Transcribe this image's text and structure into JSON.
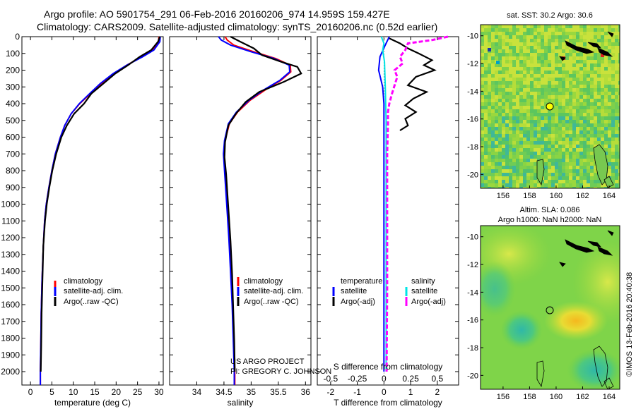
{
  "header": {
    "line1": "Argo profile: AO 5901754_291 06-Feb-2016 20160206_974 14.959S 159.427E",
    "line2": "Climatology: CARS2009. Satellite-adjusted climatology: synTS_20160206.nc (0.52d earlier)"
  },
  "credits": {
    "project": "US ARGO PROJECT",
    "pi": "PI: GREGORY C. JOHNSON",
    "imos": "©IMOS 13-Feb-2016 20:40:38"
  },
  "colors": {
    "climatology": "#ff0000",
    "satellite": "#0000ff",
    "argo": "#000000",
    "sal_satellite": "#00e5e5",
    "sal_argo": "#ff00ff"
  },
  "chart_data": [
    {
      "type": "line",
      "id": "temperature",
      "xlabel": "temperature (deg C)",
      "ylabel": "",
      "xlim": [
        -2,
        31
      ],
      "ylim": [
        2080,
        0
      ],
      "xticks": [
        "0",
        "5",
        "10",
        "15",
        "20",
        "25",
        "30"
      ],
      "xtick_values": [
        0,
        5,
        10,
        15,
        20,
        25,
        30
      ],
      "yticks": [
        "0",
        "100",
        "200",
        "300",
        "400",
        "500",
        "600",
        "700",
        "800",
        "900",
        "1000",
        "1100",
        "1200",
        "1300",
        "1400",
        "1500",
        "1600",
        "1700",
        "1800",
        "1900",
        "2000"
      ],
      "ytick_values": [
        0,
        100,
        200,
        300,
        400,
        500,
        600,
        700,
        800,
        900,
        1000,
        1100,
        1200,
        1300,
        1400,
        1500,
        1600,
        1700,
        1800,
        1900,
        2000
      ],
      "legend": [
        "climatology",
        "satellite-adj. clim.",
        "Argo(..raw -QC)"
      ],
      "series": [
        {
          "name": "climatology",
          "color": "#ff0000",
          "x": [
            30.0,
            29.9,
            28.5,
            26.0,
            22.5,
            19.5,
            16.5,
            14.0,
            11.5,
            9.5,
            8.0,
            7.0,
            5.8,
            5.0,
            4.3,
            3.7,
            3.3,
            3.0,
            2.7,
            2.5,
            2.4,
            2.3,
            2.3
          ],
          "y": [
            0,
            30,
            80,
            120,
            170,
            220,
            280,
            340,
            400,
            460,
            530,
            600,
            700,
            800,
            900,
            1000,
            1100,
            1250,
            1450,
            1650,
            1850,
            2000,
            2080
          ]
        },
        {
          "name": "satellite-adj. clim.",
          "color": "#0000ff",
          "x": [
            30.3,
            30.2,
            28.8,
            26.2,
            22.5,
            19.3,
            16.3,
            13.8,
            11.4,
            9.5,
            8.0,
            7.0,
            5.8,
            5.0,
            4.3,
            3.7,
            3.3,
            3.0,
            2.7,
            2.5,
            2.4,
            2.3,
            2.3
          ],
          "y": [
            0,
            30,
            80,
            120,
            170,
            220,
            280,
            340,
            400,
            460,
            530,
            600,
            700,
            800,
            900,
            1000,
            1100,
            1250,
            1450,
            1650,
            1850,
            2000,
            2080
          ]
        },
        {
          "name": "Argo(..raw -QC)",
          "color": "#000000",
          "x": [
            30.2,
            29.8,
            28.2,
            25.5,
            22.8,
            19.8,
            17.0,
            14.2,
            12.5,
            10.2,
            8.5,
            7.2,
            6.0,
            5.1,
            4.4,
            3.8,
            3.4,
            3.0,
            2.8,
            2.6,
            2.5,
            2.4
          ],
          "y": [
            0,
            30,
            80,
            120,
            170,
            220,
            280,
            340,
            400,
            460,
            530,
            600,
            700,
            800,
            900,
            1000,
            1100,
            1250,
            1450,
            1650,
            1850,
            2000
          ]
        }
      ]
    },
    {
      "type": "line",
      "id": "salinity",
      "xlabel": "salinity",
      "ylabel": "",
      "xlim": [
        33.5,
        36.1
      ],
      "ylim": [
        2080,
        0
      ],
      "xticks": [
        "34",
        "34.5",
        "35",
        "35.5",
        "36"
      ],
      "xtick_values": [
        34,
        34.5,
        35,
        35.5,
        36
      ],
      "legend": [
        "climatology",
        "satellite-adj. clim.",
        "Argo(..raw -QC)"
      ],
      "series": [
        {
          "name": "climatology",
          "color": "#ff0000",
          "x": [
            34.52,
            34.56,
            34.68,
            35.05,
            35.45,
            35.72,
            35.73,
            35.55,
            35.25,
            34.98,
            34.75,
            34.6,
            34.52,
            34.5,
            34.52,
            34.56,
            34.6,
            34.63,
            34.66,
            34.68,
            34.7,
            34.7
          ],
          "y": [
            0,
            20,
            50,
            90,
            130,
            170,
            210,
            260,
            320,
            380,
            450,
            520,
            620,
            700,
            800,
            1000,
            1200,
            1400,
            1600,
            1800,
            2000,
            2080
          ]
        },
        {
          "name": "satellite-adj. clim.",
          "color": "#0000ff",
          "x": [
            34.4,
            34.45,
            34.62,
            35.0,
            35.42,
            35.7,
            35.71,
            35.53,
            35.22,
            34.96,
            34.73,
            34.58,
            34.51,
            34.49,
            34.51,
            34.55,
            34.59,
            34.62,
            34.65,
            34.67,
            34.69,
            34.69
          ],
          "y": [
            0,
            20,
            50,
            90,
            130,
            170,
            210,
            260,
            320,
            380,
            450,
            520,
            620,
            700,
            800,
            1000,
            1200,
            1400,
            1600,
            1800,
            2000,
            2080
          ]
        },
        {
          "name": "Argo(..raw -QC)",
          "color": "#000000",
          "x": [
            34.62,
            34.8,
            35.05,
            35.2,
            35.55,
            35.85,
            35.92,
            35.6,
            35.15,
            34.9,
            34.72,
            34.58,
            34.52,
            34.51,
            34.54,
            34.58,
            34.62,
            34.65,
            34.67,
            34.69,
            34.7
          ],
          "y": [
            0,
            30,
            70,
            110,
            150,
            180,
            220,
            270,
            330,
            390,
            460,
            530,
            630,
            720,
            820,
            1020,
            1220,
            1420,
            1620,
            1820,
            2000
          ]
        }
      ]
    },
    {
      "type": "line",
      "id": "difference",
      "xlabel": "T difference from climatology",
      "xlabel_top": "S difference from climatology",
      "xlim": [
        -2.5,
        2.8
      ],
      "ylim": [
        2080,
        0
      ],
      "xticks": [
        "-2",
        "-1",
        "0",
        "1",
        "2"
      ],
      "xtick_values": [
        -2,
        -1,
        0,
        1,
        2
      ],
      "xticks_top": [
        "-0.5",
        "-0.25",
        "0",
        "0.25",
        "0.5"
      ],
      "xtick_values_top": [
        -0.5,
        -0.25,
        0,
        0.25,
        0.5
      ],
      "legend_titles": [
        "temperature",
        "salinity"
      ],
      "legend": [
        "satellite",
        "Argo(-adj)",
        "satellite",
        "Argo(-adj)"
      ],
      "series": [
        {
          "name": "satellite",
          "color": "#0000ff",
          "x": [
            0.2,
            0.05,
            -0.15,
            -0.2,
            -0.05,
            0.0,
            0.0,
            0.0,
            0.0,
            0.0
          ],
          "y": [
            0,
            50,
            120,
            200,
            300,
            400,
            600,
            1000,
            1500,
            2000
          ]
        },
        {
          "name": "Argo(-adj)",
          "color": "#000000",
          "x": [
            0.2,
            0.6,
            0.9,
            1.3,
            1.8,
            1.5,
            1.9,
            1.2,
            0.9,
            1.6,
            1.1,
            0.8,
            1.2,
            0.8,
            0.9,
            0.6
          ],
          "y": [
            10,
            40,
            70,
            100,
            140,
            170,
            200,
            240,
            290,
            330,
            370,
            410,
            450,
            490,
            530,
            560
          ]
        },
        {
          "name": "satellite",
          "color": "#00e5e5",
          "x": [
            -0.1,
            0.0,
            -0.05,
            0.02,
            0.05,
            0.08,
            0.08,
            0.08,
            0.08,
            0.08,
            0.08
          ],
          "y": [
            0,
            40,
            80,
            150,
            300,
            500,
            700,
            1000,
            1400,
            1800,
            2000
          ]
        },
        {
          "name": "Argo(-adj)",
          "color": "#ff00ff",
          "x": [
            2.4,
            1.8,
            0.9,
            0.8,
            0.6,
            0.7,
            0.4,
            0.5,
            0.4,
            0.3,
            0.2,
            0.15,
            0.15,
            0.12,
            0.12,
            0.12,
            0.1
          ],
          "y": [
            0,
            20,
            40,
            80,
            120,
            160,
            200,
            240,
            290,
            340,
            400,
            450,
            520,
            700,
            1000,
            1500,
            2000
          ]
        }
      ]
    },
    {
      "type": "heatmap",
      "id": "sst_map",
      "title": "sat. SST: 30.2  Argo: 30.6",
      "xlim": [
        154.3,
        164.8
      ],
      "ylim": [
        -21,
        -9.2
      ],
      "xticks": [
        "156",
        "158",
        "160",
        "162",
        "164"
      ],
      "xtick_values": [
        156,
        158,
        160,
        162,
        164
      ],
      "yticks": [
        "-10",
        "-12",
        "-14",
        "-16",
        "-18",
        "-20"
      ],
      "ytick_values": [
        -10,
        -12,
        -14,
        -16,
        -18,
        -20
      ],
      "argo_position": [
        159.427,
        -14.959
      ]
    },
    {
      "type": "heatmap",
      "id": "sla_map",
      "title": "Altim. SLA: 0.086",
      "subtitle": "Argo h1000: NaN  h2000: NaN",
      "xlim": [
        154.3,
        164.8
      ],
      "ylim": [
        -21,
        -9.2
      ],
      "xticks": [
        "156",
        "158",
        "160",
        "162",
        "164"
      ],
      "xtick_values": [
        156,
        158,
        160,
        162,
        164
      ],
      "yticks": [
        "-10",
        "-12",
        "-14",
        "-16",
        "-18",
        "-20"
      ],
      "ytick_values": [
        -10,
        -12,
        -14,
        -16,
        -18,
        -20
      ],
      "argo_position": [
        159.427,
        -14.959
      ]
    }
  ]
}
